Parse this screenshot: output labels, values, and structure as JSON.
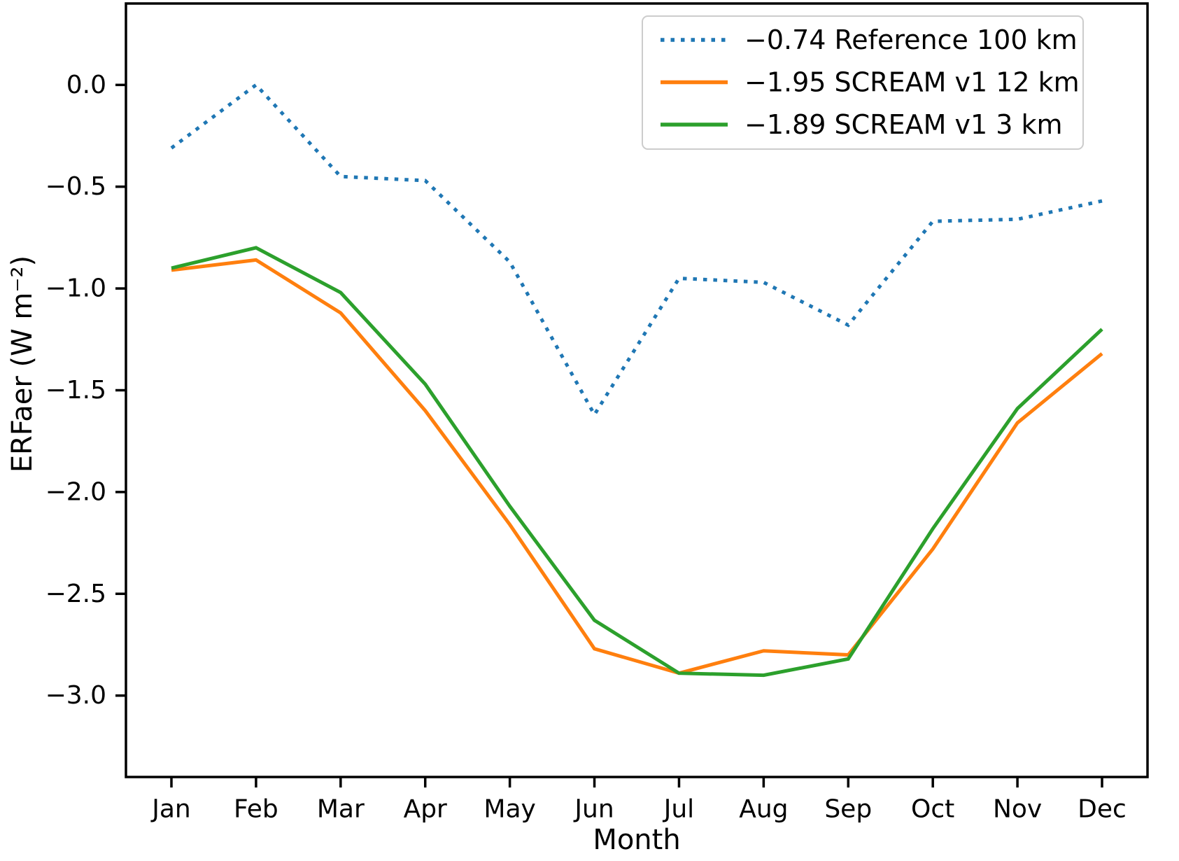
{
  "figure": {
    "background": "#ffffff",
    "axis_color": "#000000",
    "legend_border_color": "#cccccc"
  },
  "chart_data": {
    "type": "line",
    "title": "",
    "xlabel": "Month",
    "ylabel": "ERFaer (W m⁻²)",
    "categories": [
      "Jan",
      "Feb",
      "Mar",
      "Apr",
      "May",
      "Jun",
      "Jul",
      "Aug",
      "Sep",
      "Oct",
      "Nov",
      "Dec"
    ],
    "series": [
      {
        "name": "−0.74 Reference 100 km",
        "color": "#1f77b4",
        "style": "dotted",
        "values": [
          -0.31,
          0.0,
          -0.45,
          -0.47,
          -0.87,
          -1.62,
          -0.95,
          -0.97,
          -1.18,
          -0.67,
          -0.66,
          -0.57
        ]
      },
      {
        "name": "−1.95 SCREAM v1 12 km",
        "color": "#ff7f0e",
        "style": "solid",
        "values": [
          -0.91,
          -0.86,
          -1.12,
          -1.6,
          -2.16,
          -2.77,
          -2.89,
          -2.78,
          -2.8,
          -2.28,
          -1.66,
          -1.32
        ]
      },
      {
        "name": "−1.89 SCREAM v1 3 km",
        "color": "#2ca02c",
        "style": "solid",
        "values": [
          -0.9,
          -0.8,
          -1.02,
          -1.47,
          -2.07,
          -2.63,
          -2.89,
          -2.9,
          -2.82,
          -2.18,
          -1.59,
          -1.2
        ]
      }
    ],
    "yticks": [
      {
        "value": 0.0,
        "label": "0.0"
      },
      {
        "value": -0.5,
        "label": "−0.5"
      },
      {
        "value": -1.0,
        "label": "−1.0"
      },
      {
        "value": -1.5,
        "label": "−1.5"
      },
      {
        "value": -2.0,
        "label": "−2.0"
      },
      {
        "value": -2.5,
        "label": "−2.5"
      },
      {
        "value": -3.0,
        "label": "−3.0"
      }
    ],
    "ylim": [
      -3.4,
      0.4
    ],
    "grid": false,
    "legend_position": "upper right"
  }
}
